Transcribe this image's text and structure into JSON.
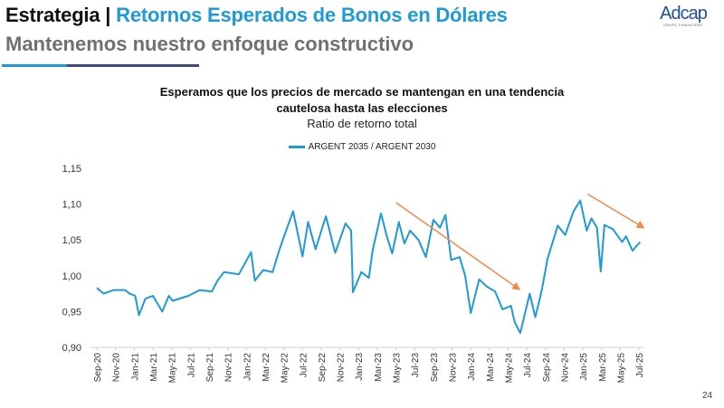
{
  "header": {
    "title_prefix": "Estrategia |",
    "title_main": "Retornos Esperados de Bonos en Dólares",
    "subtitle": "Mantenemos nuestro enfoque constructivo",
    "logo_name": "Adcap",
    "logo_sub": "GRUPO FINANCIERO"
  },
  "colors": {
    "brand_blue": "#1e9ad6",
    "navy": "#3a4a7a",
    "series": "#1e9ad6",
    "arrow": "#f08a4b"
  },
  "page_number": "24",
  "chart_data": {
    "type": "line",
    "title_line1": "Esperamos que los precios de mercado se mantengan en una tendencia",
    "title_line2": "cautelosa hasta las elecciones",
    "subtitle": "Ratio de retorno total",
    "legend": [
      "ARGENT 2035 / ARGENT 2030"
    ],
    "legend_placement": "top-center",
    "ylim": [
      0.9,
      1.15
    ],
    "yticks": [
      "1,15",
      "1,10",
      "1,05",
      "1,00",
      "0,95",
      "0,90"
    ],
    "ytick_values": [
      1.15,
      1.1,
      1.05,
      1.0,
      0.95,
      0.9
    ],
    "x_unit": "months since Sep-20",
    "xticks": [
      "Sep-20",
      "Nov-20",
      "Jan-21",
      "Mar-21",
      "May-21",
      "Jul-21",
      "Sep-21",
      "Nov-21",
      "Jan-22",
      "Mar-22",
      "May-22",
      "Jul-22",
      "Sep-22",
      "Nov-22",
      "Jan-23",
      "Mar-23",
      "May-23",
      "Jul-23",
      "Sep-23",
      "Nov-23",
      "Jan-24",
      "Mar-24",
      "May-24",
      "Jul-24",
      "Sep-24",
      "Nov-24",
      "Jan-25",
      "Mar-25",
      "May-25",
      "Jul-25"
    ],
    "grid": false,
    "series": [
      {
        "name": "ARGENT 2035 / ARGENT 2030",
        "x": [
          0,
          0.75,
          1.8,
          3,
          3.5,
          4.1,
          4.5,
          5.2,
          6,
          7,
          7.7,
          8.1,
          9.8,
          11,
          12.3,
          12.9,
          13.6,
          15.2,
          16.5,
          16.9,
          17.8,
          18.8,
          19.5,
          20.3,
          21,
          22,
          22.6,
          23.4,
          24.5,
          25.5,
          26.6,
          27.2,
          27.4,
          28.3,
          29.1,
          29.5,
          30.4,
          31,
          31.6,
          32.3,
          32.9,
          33.5,
          34.4,
          35.2,
          36,
          36.7,
          37.3,
          37.9,
          38.8,
          39.4,
          40,
          40.9,
          41.7,
          42.6,
          43.4,
          44.3,
          44.7,
          45.3,
          46.3,
          46.9,
          47.6,
          48.2,
          49.3,
          50.1,
          51,
          51.7,
          52.4,
          52.9,
          53.5,
          53.9,
          54.3,
          55.2,
          56.2,
          56.6,
          57.3,
          58.1
        ],
        "y": [
          0.983,
          0.975,
          0.98,
          0.98,
          0.975,
          0.972,
          0.945,
          0.968,
          0.972,
          0.95,
          0.972,
          0.965,
          0.972,
          0.98,
          0.978,
          0.993,
          1.005,
          1.002,
          1.033,
          0.993,
          1.008,
          1.005,
          1.035,
          1.065,
          1.09,
          1.027,
          1.075,
          1.037,
          1.083,
          1.032,
          1.073,
          1.063,
          0.977,
          1.005,
          0.997,
          1.035,
          1.087,
          1.056,
          1.031,
          1.075,
          1.045,
          1.063,
          1.05,
          1.026,
          1.078,
          1.067,
          1.085,
          1.022,
          1.026,
          1.0,
          0.948,
          0.995,
          0.985,
          0.978,
          0.953,
          0.958,
          0.935,
          0.92,
          0.975,
          0.942,
          0.98,
          1.023,
          1.07,
          1.057,
          1.09,
          1.105,
          1.063,
          1.08,
          1.067,
          1.006,
          1.071,
          1.065,
          1.047,
          1.055,
          1.035,
          1.047
        ]
      }
    ],
    "annotations": [
      {
        "type": "arrow",
        "from": [
          32,
          1.102
        ],
        "to": [
          45.2,
          0.981
        ]
      },
      {
        "type": "arrow",
        "from": [
          52.5,
          1.114
        ],
        "to": [
          58.5,
          1.067
        ]
      }
    ]
  }
}
